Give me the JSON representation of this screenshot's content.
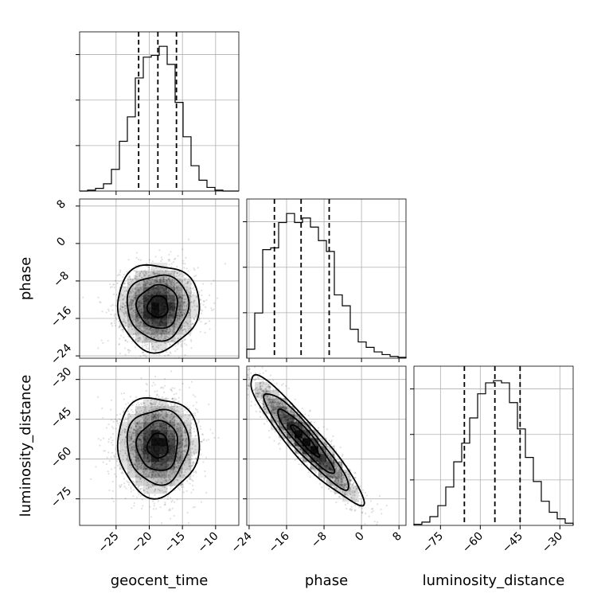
{
  "chart_data": {
    "type": "corner",
    "parameters": [
      "geocent_time",
      "phase",
      "luminosity_distance"
    ],
    "axis_ranges": {
      "geocent_time": [
        -30.5,
        -6.5
      ],
      "phase": [
        -24.5,
        9.5
      ],
      "luminosity_distance": [
        -85.0,
        -25.0
      ]
    },
    "ticks": {
      "geocent_time": [
        -25,
        -20,
        -15,
        -10
      ],
      "phase_x": [
        -24,
        -16,
        -8,
        0,
        8
      ],
      "phase_y": [
        8,
        0,
        -8,
        -16,
        -24
      ],
      "luminosity_distance_x": [
        -75,
        -60,
        -45,
        -30
      ],
      "luminosity_distance_y": [
        -30,
        -45,
        -60,
        -75
      ]
    },
    "grid": true,
    "quantiles": {
      "geocent_time": [
        -21.6,
        -18.7,
        -15.9
      ],
      "phase": [
        -18.6,
        -12.9,
        -6.9
      ],
      "luminosity_distance": [
        -66.0,
        -54.5,
        -45.0
      ]
    },
    "histograms": {
      "geocent_time": {
        "bin_edges": [
          -30.5,
          -29.3,
          -28.1,
          -26.9,
          -25.7,
          -24.5,
          -23.3,
          -22.1,
          -20.9,
          -19.7,
          -18.5,
          -17.3,
          -16.1,
          -14.9,
          -13.7,
          -12.5,
          -11.3,
          -10.1,
          -8.9,
          -7.7,
          -6.5
        ],
        "counts": [
          0,
          1,
          3,
          8,
          24,
          55,
          82,
          125,
          148,
          150,
          160,
          140,
          98,
          60,
          28,
          12,
          4,
          1,
          0,
          0
        ]
      },
      "phase": {
        "bin_edges": [
          -24.5,
          -22.8,
          -21.1,
          -19.4,
          -17.7,
          -16.0,
          -14.3,
          -12.6,
          -10.9,
          -9.2,
          -7.5,
          -5.8,
          -4.1,
          -2.4,
          -0.7,
          1.0,
          2.7,
          4.4,
          6.1,
          7.8,
          9.5
        ],
        "counts": [
          10,
          50,
          120,
          122,
          150,
          160,
          150,
          155,
          145,
          130,
          118,
          70,
          58,
          32,
          18,
          12,
          7,
          4,
          2,
          1
        ]
      },
      "luminosity_distance": {
        "bin_edges": [
          -85,
          -82,
          -79,
          -76,
          -73,
          -70,
          -67,
          -64,
          -61,
          -58,
          -55,
          -52,
          -49,
          -46,
          -43,
          -40,
          -37,
          -34,
          -31,
          -28,
          -25
        ],
        "counts": [
          1,
          3,
          8,
          18,
          35,
          58,
          75,
          98,
          120,
          130,
          132,
          130,
          112,
          88,
          62,
          40,
          22,
          12,
          6,
          2
        ]
      }
    },
    "pairs": [
      {
        "x": "geocent_time",
        "y": "phase",
        "center": [
          -18.7,
          -13.5
        ],
        "spread": [
          2.8,
          4.2
        ],
        "correlation": 0.0,
        "contours_sigma": [
          0.55,
          1.1,
          1.65,
          2.2
        ],
        "n_samples": 2600
      },
      {
        "x": "geocent_time",
        "y": "luminosity_distance",
        "center": [
          -18.7,
          -55.0
        ],
        "spread": [
          2.8,
          8.5
        ],
        "correlation": 0.0,
        "contours_sigma": [
          0.55,
          1.1,
          1.65,
          2.2
        ],
        "n_samples": 2600
      },
      {
        "x": "phase",
        "y": "luminosity_distance",
        "center": [
          -12.0,
          -53.0
        ],
        "spread": [
          5.5,
          11.0
        ],
        "correlation": -0.93,
        "contours_sigma": [
          0.55,
          1.1,
          1.65,
          2.2
        ],
        "n_samples": 2600
      }
    ],
    "axis_labels": {
      "x": [
        "geocent_time",
        "phase",
        "luminosity_distance"
      ],
      "y": [
        "",
        "phase",
        "luminosity_distance"
      ]
    }
  }
}
